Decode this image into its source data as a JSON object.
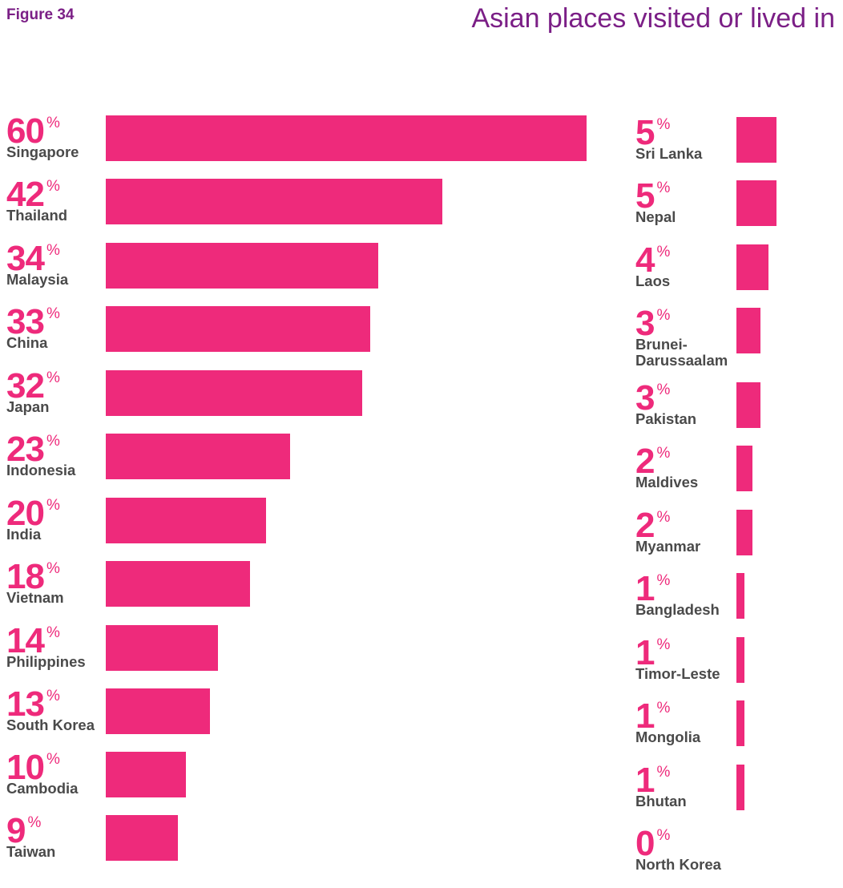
{
  "figure_label": "Figure 34",
  "colors": {
    "bar": "#ee2a7b",
    "percent": "#ee2a7b",
    "title": "#7b1f86",
    "label": "#4a4a4a"
  },
  "chart_data": {
    "type": "bar",
    "orientation": "horizontal",
    "title": "Asian places visited or lived in",
    "unit": "%",
    "groups": [
      {
        "column": "left",
        "categories": [
          "Singapore",
          "Thailand",
          "Malaysia",
          "China",
          "Japan",
          "Indonesia",
          "India",
          "Vietnam",
          "Philippines",
          "South Korea",
          "Cambodia",
          "Taiwan"
        ],
        "values": [
          60,
          42,
          34,
          33,
          32,
          23,
          20,
          18,
          14,
          13,
          10,
          9
        ]
      },
      {
        "column": "right",
        "categories": [
          "Sri Lanka",
          "Nepal",
          "Laos",
          "Brunei-\nDarussaalam",
          "Pakistan",
          "Maldives",
          "Myanmar",
          "Bangladesh",
          "Timor-Leste",
          "Mongolia",
          "Bhutan",
          "North Korea"
        ],
        "values": [
          5,
          5,
          4,
          3,
          3,
          2,
          2,
          1,
          1,
          1,
          1,
          0
        ]
      }
    ]
  }
}
